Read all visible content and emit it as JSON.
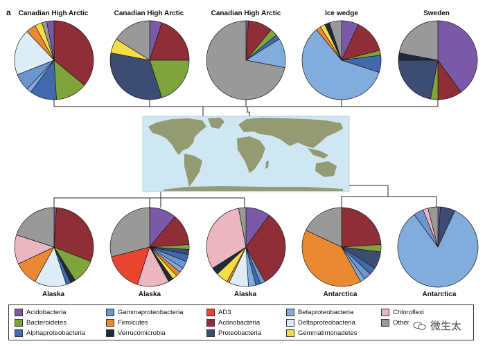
{
  "panel_label": "a",
  "colors": {
    "Acidobacteria": "#7a5aa8",
    "Bacteroidetes": "#80a43c",
    "Alphaproteobacteria": "#3f6aae",
    "Gammaproteobacteria": "#6c95d0",
    "Firmicutes": "#e98a32",
    "Verrucomicrobia": "#1e2b3a",
    "AD3": "#e84430",
    "Actinobacteria": "#8f2e36",
    "Proteobacteria": "#3c4c72",
    "Betaproteobacteria": "#82acdc",
    "Deltaproteobacteria": "#dcedf5",
    "Gemmatimonadetes": "#f6dc45",
    "Chloroflexi": "#eab6bf",
    "Other": "#999999",
    "map_ocean": "#cfe6f3",
    "map_land": "#949a72"
  },
  "legend": {
    "items": [
      {
        "label": "Acidobacteria",
        "color": "#7a5aa8"
      },
      {
        "label": "Bacteroidetes",
        "color": "#80a43c"
      },
      {
        "label": "Alphaproteobacteria",
        "color": "#3f6aae"
      },
      {
        "label": "Gammaproteobacteria",
        "color": "#6c95d0"
      },
      {
        "label": "Firmicutes",
        "color": "#e98a32"
      },
      {
        "label": "Verrucomicrobia",
        "color": "#1e2b3a"
      },
      {
        "label": "AD3",
        "color": "#e84430"
      },
      {
        "label": "Actinobacteria",
        "color": "#8f2e36"
      },
      {
        "label": "Proteobacteria",
        "color": "#3c4c72"
      },
      {
        "label": "Betaproteobacteria",
        "color": "#82acdc"
      },
      {
        "label": "Deltaproteobacteria",
        "color": "#dcedf5"
      },
      {
        "label": "Gemmatimonadetes",
        "color": "#f6dc45"
      },
      {
        "label": "Chloroflexi",
        "color": "#eab6bf"
      },
      {
        "label": "Other",
        "color": "#999999"
      }
    ]
  },
  "watermark": {
    "text": "微生太",
    "icon": "wechat-icon"
  },
  "chart_data": [
    {
      "type": "pie",
      "title": "Canadian High Arctic",
      "slices": [
        {
          "label": "Actinobacteria",
          "value": 36
        },
        {
          "label": "Bacteroidetes",
          "value": 13
        },
        {
          "label": "Alphaproteobacteria",
          "value": 11
        },
        {
          "label": "Betaproteobacteria",
          "value": 2
        },
        {
          "label": "Gammaproteobacteria",
          "value": 7
        },
        {
          "label": "Deltaproteobacteria",
          "value": 19
        },
        {
          "label": "Firmicutes",
          "value": 4
        },
        {
          "label": "Gemmatimonadetes",
          "value": 3
        },
        {
          "label": "Other",
          "value": 2
        },
        {
          "label": "Acidobacteria",
          "value": 3
        }
      ]
    },
    {
      "type": "pie",
      "title": "Canadian High Arctic",
      "slices": [
        {
          "label": "Acidobacteria",
          "value": 5
        },
        {
          "label": "Actinobacteria",
          "value": 20
        },
        {
          "label": "Bacteroidetes",
          "value": 20
        },
        {
          "label": "Proteobacteria",
          "value": 33
        },
        {
          "label": "Gemmatimonadetes",
          "value": 6
        },
        {
          "label": "Other",
          "value": 16
        }
      ]
    },
    {
      "type": "pie",
      "title": "Canadian High Arctic",
      "slices": [
        {
          "label": "Acidobacteria",
          "value": 1
        },
        {
          "label": "Actinobacteria",
          "value": 10
        },
        {
          "label": "Bacteroidetes",
          "value": 3
        },
        {
          "label": "Alphaproteobacteria",
          "value": 2
        },
        {
          "label": "Betaproteobacteria",
          "value": 12
        },
        {
          "label": "Other",
          "value": 72
        }
      ]
    },
    {
      "type": "pie",
      "title": "Ice wedge",
      "slices": [
        {
          "label": "Acidobacteria",
          "value": 7
        },
        {
          "label": "Actinobacteria",
          "value": 14
        },
        {
          "label": "Bacteroidetes",
          "value": 2
        },
        {
          "label": "Alphaproteobacteria",
          "value": 7
        },
        {
          "label": "Betaproteobacteria",
          "value": 59
        },
        {
          "label": "Firmicutes",
          "value": 2
        },
        {
          "label": "Gemmatimonadetes",
          "value": 2
        },
        {
          "label": "Verrucomicrobia",
          "value": 2
        },
        {
          "label": "Other",
          "value": 5
        }
      ]
    },
    {
      "type": "pie",
      "title": "Sweden",
      "slices": [
        {
          "label": "Acidobacteria",
          "value": 40
        },
        {
          "label": "Actinobacteria",
          "value": 10
        },
        {
          "label": "Bacteroidetes",
          "value": 3
        },
        {
          "label": "Proteobacteria",
          "value": 22
        },
        {
          "label": "Verrucomicrobia",
          "value": 3
        },
        {
          "label": "Other",
          "value": 22
        }
      ]
    },
    {
      "type": "pie",
      "title": "Alaska",
      "slices": [
        {
          "label": "Acidobacteria",
          "value": 1
        },
        {
          "label": "Actinobacteria",
          "value": 30
        },
        {
          "label": "Bacteroidetes",
          "value": 10
        },
        {
          "label": "Verrucomicrobia",
          "value": 2
        },
        {
          "label": "Alphaproteobacteria",
          "value": 2
        },
        {
          "label": "Deltaproteobacteria",
          "value": 13
        },
        {
          "label": "Firmicutes",
          "value": 10
        },
        {
          "label": "Chloroflexi",
          "value": 12
        },
        {
          "label": "Other",
          "value": 20
        }
      ]
    },
    {
      "type": "pie",
      "title": "Alaska",
      "slices": [
        {
          "label": "Acidobacteria",
          "value": 11
        },
        {
          "label": "Actinobacteria",
          "value": 13
        },
        {
          "label": "Bacteroidetes",
          "value": 2
        },
        {
          "label": "Proteobacteria",
          "value": 2
        },
        {
          "label": "Alphaproteobacteria",
          "value": 3
        },
        {
          "label": "Gammaproteobacteria",
          "value": 3
        },
        {
          "label": "Betaproteobacteria",
          "value": 2
        },
        {
          "label": "Firmicutes",
          "value": 2
        },
        {
          "label": "Gemmatimonadetes",
          "value": 2
        },
        {
          "label": "Verrucomicrobia",
          "value": 2
        },
        {
          "label": "Chloroflexi",
          "value": 13
        },
        {
          "label": "AD3",
          "value": 16
        },
        {
          "label": "Other",
          "value": 29
        }
      ]
    },
    {
      "type": "pie",
      "title": "Alaska",
      "slices": [
        {
          "label": "Acidobacteria",
          "value": 10
        },
        {
          "label": "Actinobacteria",
          "value": 32
        },
        {
          "label": "Gammaproteobacteria",
          "value": 2
        },
        {
          "label": "Alphaproteobacteria",
          "value": 2
        },
        {
          "label": "Betaproteobacteria",
          "value": 3
        },
        {
          "label": "Deltaproteobacteria",
          "value": 8
        },
        {
          "label": "Firmicutes",
          "value": 1
        },
        {
          "label": "Gemmatimonadetes",
          "value": 5
        },
        {
          "label": "Verrucomicrobia",
          "value": 3
        },
        {
          "label": "Chloroflexi",
          "value": 31
        },
        {
          "label": "Other",
          "value": 3
        }
      ]
    },
    {
      "type": "pie",
      "title": "Antarctica",
      "slices": [
        {
          "label": "Actinobacteria",
          "value": 24
        },
        {
          "label": "Bacteroidetes",
          "value": 3
        },
        {
          "label": "Proteobacteria",
          "value": 7
        },
        {
          "label": "Alphaproteobacteria",
          "value": 3
        },
        {
          "label": "Gammaproteobacteria",
          "value": 3
        },
        {
          "label": "Betaproteobacteria",
          "value": 2
        },
        {
          "label": "Firmicutes",
          "value": 40
        },
        {
          "label": "Other",
          "value": 18
        }
      ]
    },
    {
      "type": "pie",
      "title": "Antarctica",
      "slices": [
        {
          "label": "Acidobacteria",
          "value": 1
        },
        {
          "label": "Proteobacteria",
          "value": 6
        },
        {
          "label": "Betaproteobacteria",
          "value": 83
        },
        {
          "label": "Gammaproteobacteria",
          "value": 4
        },
        {
          "label": "Chloroflexi",
          "value": 2
        },
        {
          "label": "Other",
          "value": 4
        }
      ]
    }
  ]
}
